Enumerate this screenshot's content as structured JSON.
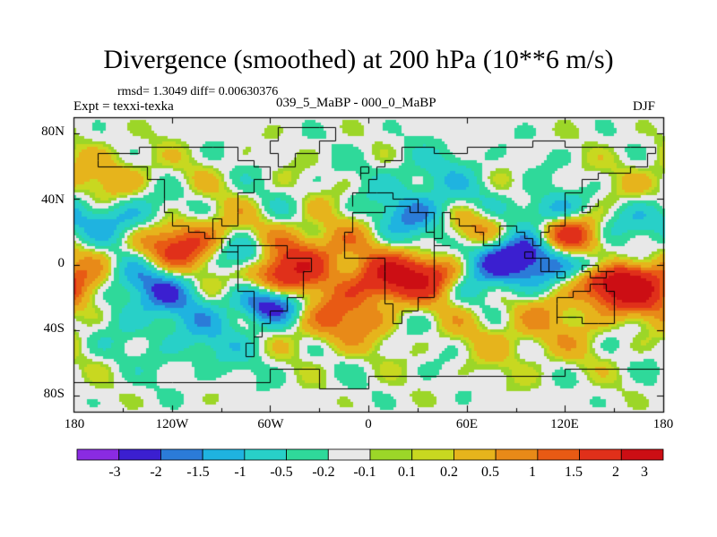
{
  "title": "Divergence (smoothed) at 200 hPa (10**6 m/s)",
  "stats": "rmsd= 1.3049 diff= 0.00630376",
  "experiment": "Expt = texxi-texka",
  "subtitle": "039_5_MaBP - 000_0_MaBP",
  "season": "DJF",
  "y_ticks": [
    "80N",
    "40N",
    "0",
    "40S",
    "80S"
  ],
  "x_ticks": [
    "180",
    "120W",
    "60W",
    "0",
    "60E",
    "120E",
    "180"
  ],
  "colorbar": {
    "labels": [
      "-3",
      "-2",
      "-1.5",
      "-1",
      "-0.5",
      "-0.2",
      "-0.1",
      "0.1",
      "0.2",
      "0.5",
      "1",
      "1.5",
      "2",
      "3"
    ],
    "colors": [
      "#8a2be2",
      "#3b1fd0",
      "#2b7bd8",
      "#1fb3e0",
      "#28d0c8",
      "#2fd99a",
      "#e8e8e8",
      "#9cd628",
      "#c8d820",
      "#e6b41c",
      "#e88a18",
      "#e85a14",
      "#e0301a",
      "#cc0e14"
    ]
  },
  "chart_data": {
    "type": "heatmap",
    "variable": "Divergence (smoothed) at 200 hPa",
    "units": "10**6 m/s",
    "x_range": [
      -180,
      180
    ],
    "y_range": [
      -90,
      90
    ],
    "contour_levels": [
      -3,
      -2,
      -1.5,
      -1,
      -0.5,
      -0.2,
      -0.1,
      0.1,
      0.2,
      0.5,
      1,
      1.5,
      2,
      3
    ],
    "features": [
      {
        "lon": 85,
        "lat": 5,
        "value": -3.5,
        "spread": 14
      },
      {
        "lon": -140,
        "lat": 28,
        "value": -2.5,
        "spread": 12
      },
      {
        "lon": -135,
        "lat": -12,
        "value": -2.2,
        "spread": 14
      },
      {
        "lon": -60,
        "lat": -25,
        "value": -2.6,
        "spread": 8
      },
      {
        "lon": -75,
        "lat": 5,
        "value": -2.0,
        "spread": 8
      },
      {
        "lon": 30,
        "lat": 30,
        "value": -1.5,
        "spread": 10
      },
      {
        "lon": 110,
        "lat": 32,
        "value": -2.2,
        "spread": 8
      },
      {
        "lon": 140,
        "lat": 0,
        "value": -2.0,
        "spread": 6
      },
      {
        "lon": 170,
        "lat": 28,
        "value": -1.5,
        "spread": 10
      },
      {
        "lon": -120,
        "lat": 12,
        "value": 3.0,
        "spread": 14
      },
      {
        "lon": -55,
        "lat": -5,
        "value": 2.6,
        "spread": 10
      },
      {
        "lon": 10,
        "lat": -10,
        "value": 2.8,
        "spread": 10
      },
      {
        "lon": 40,
        "lat": -5,
        "value": 2.6,
        "spread": 9
      },
      {
        "lon": 70,
        "lat": 20,
        "value": 2.4,
        "spread": 10
      },
      {
        "lon": 120,
        "lat": 20,
        "value": 2.8,
        "spread": 10
      },
      {
        "lon": 150,
        "lat": -12,
        "value": 3.0,
        "spread": 10
      },
      {
        "lon": 175,
        "lat": -15,
        "value": 2.2,
        "spread": 12
      },
      {
        "lon": -30,
        "lat": 10,
        "value": 1.5,
        "spread": 12
      },
      {
        "lon": -20,
        "lat": -35,
        "value": 1.8,
        "spread": 12
      },
      {
        "lon": -160,
        "lat": 50,
        "value": 1.2,
        "spread": 18
      },
      {
        "lon": 40,
        "lat": 55,
        "value": -1.0,
        "spread": 14
      },
      {
        "lon": -100,
        "lat": -45,
        "value": -1.0,
        "spread": 16
      },
      {
        "lon": 100,
        "lat": -40,
        "value": 1.0,
        "spread": 18
      }
    ]
  }
}
